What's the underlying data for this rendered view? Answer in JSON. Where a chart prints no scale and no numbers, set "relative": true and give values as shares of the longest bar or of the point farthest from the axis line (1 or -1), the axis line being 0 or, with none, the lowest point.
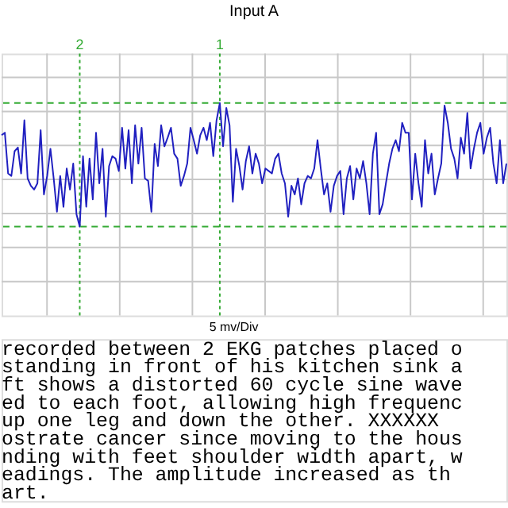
{
  "chart_data": {
    "type": "line",
    "title": "Input A",
    "relative": true,
    "grid": true,
    "legend": false,
    "categories": [
      null,
      null,
      null,
      null,
      null,
      null,
      null,
      null,
      null,
      null,
      null,
      null,
      null,
      null,
      null,
      null,
      null,
      null,
      null,
      null,
      null,
      null,
      null,
      null,
      null,
      null,
      null,
      null,
      null,
      null,
      null,
      null,
      null,
      null,
      null,
      null,
      null,
      null,
      null,
      null,
      null,
      null,
      null,
      null,
      null,
      null,
      null,
      null,
      null,
      null,
      null,
      null,
      null,
      null,
      null,
      null,
      null,
      null,
      null,
      null,
      null,
      null,
      null,
      null,
      null,
      null,
      null,
      null,
      null,
      null,
      null,
      null,
      null,
      null,
      null,
      null,
      null,
      null,
      null,
      null,
      null,
      null,
      null,
      null,
      null,
      null,
      null,
      null,
      null,
      null,
      null,
      null,
      null,
      null,
      null,
      null,
      null,
      null,
      null,
      null,
      null,
      null,
      null,
      null,
      null,
      null,
      null,
      null,
      null,
      null,
      null,
      null,
      null,
      null,
      null,
      null,
      null,
      null,
      null,
      null,
      null,
      null,
      null,
      null,
      null,
      null,
      null,
      null,
      null,
      null,
      null,
      null,
      null,
      null,
      null,
      null,
      null,
      null,
      null,
      null,
      null,
      null,
      null,
      null,
      null,
      null,
      null,
      null,
      null,
      null,
      null,
      null,
      null,
      null,
      null,
      null
    ],
    "series": [
      {
        "color": "#2020c0",
        "values": [
          0.74,
          0.76,
          0.43,
          0.41,
          0.61,
          0.64,
          0.43,
          0.86,
          0.39,
          0.33,
          0.3,
          0.35,
          0.78,
          0.26,
          0.41,
          0.63,
          0.39,
          0.12,
          0.41,
          0.16,
          0.47,
          0.3,
          0.51,
          0.1,
          0.0,
          0.57,
          0.16,
          0.55,
          0.22,
          0.76,
          0.35,
          0.63,
          0.08,
          0.49,
          0.57,
          0.55,
          0.45,
          0.8,
          0.47,
          0.78,
          0.35,
          0.82,
          0.51,
          0.8,
          0.39,
          0.37,
          0.12,
          0.67,
          0.49,
          0.82,
          0.65,
          0.72,
          0.8,
          0.59,
          0.55,
          0.33,
          0.41,
          0.51,
          0.8,
          0.7,
          0.59,
          0.74,
          0.8,
          0.7,
          0.84,
          0.57,
          0.86,
          1.0,
          0.65,
          0.96,
          0.82,
          0.2,
          0.63,
          0.49,
          0.3,
          0.53,
          0.65,
          0.43,
          0.59,
          0.51,
          0.35,
          0.47,
          0.45,
          0.43,
          0.55,
          0.59,
          0.43,
          0.35,
          0.08,
          0.33,
          0.26,
          0.39,
          0.18,
          0.35,
          0.41,
          0.39,
          0.47,
          0.7,
          0.47,
          0.26,
          0.35,
          0.12,
          0.33,
          0.41,
          0.45,
          0.1,
          0.39,
          0.49,
          0.22,
          0.47,
          0.39,
          0.53,
          0.35,
          0.1,
          0.59,
          0.76,
          0.1,
          0.18,
          0.35,
          0.51,
          0.63,
          0.7,
          0.61,
          0.84,
          0.76,
          0.76,
          0.22,
          0.59,
          0.35,
          0.16,
          0.7,
          0.43,
          0.59,
          0.26,
          0.39,
          0.51,
          0.98,
          0.84,
          0.63,
          0.55,
          0.39,
          0.72,
          0.59,
          0.92,
          0.47,
          0.63,
          0.76,
          0.84,
          0.59,
          0.72,
          0.8,
          0.51,
          0.35,
          0.7,
          0.35,
          0.51
        ]
      }
    ],
    "annotations": [
      "2",
      "1",
      "5 mv/Div",
      "recorded between 2 EKG patches placed o",
      "standing in front of his kitchen sink a",
      "ft shows a distorted 60 cycle sine wave",
      "ed to each foot, allowing high frequenc",
      "up one leg and down the other.  XXXXXX ",
      "ostrate cancer since moving to the hous",
      "nding with feet shoulder width apart, w",
      "eadings.  The amplitude increased as th",
      "art."
    ]
  }
}
